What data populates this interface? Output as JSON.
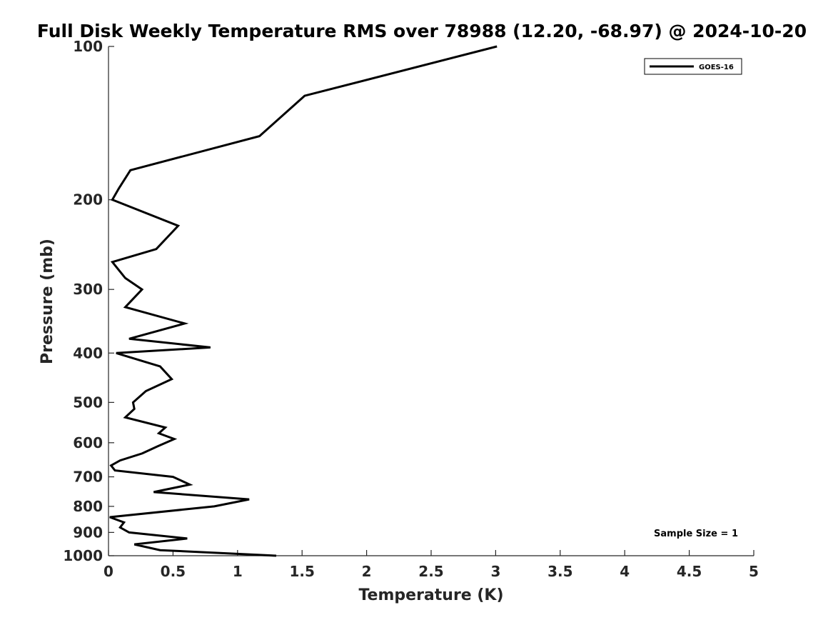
{
  "chart_data": {
    "type": "line",
    "title": "Full Disk Weekly Temperature RMS over 78988 (12.20, -68.97) @ 2024-10-20",
    "xlabel": "Temperature (K)",
    "ylabel": "Pressure (mb)",
    "xlim": [
      0,
      5
    ],
    "ylim": [
      100,
      1000
    ],
    "y_scale": "log",
    "y_inverted": true,
    "x_ticks": [
      0,
      0.5,
      1,
      1.5,
      2,
      2.5,
      3,
      3.5,
      4,
      4.5,
      5
    ],
    "x_tick_labels": [
      "0",
      "0.5",
      "1",
      "1.5",
      "2",
      "2.5",
      "3",
      "3.5",
      "4",
      "4.5",
      "5"
    ],
    "y_ticks": [
      100,
      200,
      300,
      400,
      500,
      600,
      700,
      800,
      900,
      1000
    ],
    "y_tick_labels": [
      "100",
      "200",
      "300",
      "400",
      "500",
      "600",
      "700",
      "800",
      "900",
      "1000"
    ],
    "grid": false,
    "legend_position": "top-right",
    "annotation": "Sample Size = 1",
    "series": [
      {
        "name": "GOES-16",
        "color": "#000000",
        "x": [
          3.01,
          1.52,
          1.17,
          0.17,
          0.08,
          0.03,
          0.54,
          0.37,
          0.03,
          0.13,
          0.26,
          0.13,
          0.59,
          0.16,
          0.79,
          0.06,
          0.4,
          0.49,
          0.29,
          0.19,
          0.2,
          0.13,
          0.44,
          0.39,
          0.51,
          0.38,
          0.26,
          0.09,
          0.02,
          0.05,
          0.5,
          0.63,
          0.35,
          1.09,
          0.82,
          0.01,
          0.12,
          0.09,
          0.16,
          0.61,
          0.2,
          0.4,
          1.3
        ],
        "y": [
          100,
          125,
          150,
          175,
          190,
          200,
          225,
          250,
          265,
          285,
          300,
          325,
          350,
          375,
          390,
          400,
          425,
          450,
          475,
          500,
          515,
          535,
          560,
          575,
          590,
          610,
          630,
          650,
          665,
          680,
          700,
          725,
          750,
          775,
          800,
          840,
          860,
          880,
          900,
          925,
          950,
          975,
          1000
        ]
      }
    ]
  }
}
